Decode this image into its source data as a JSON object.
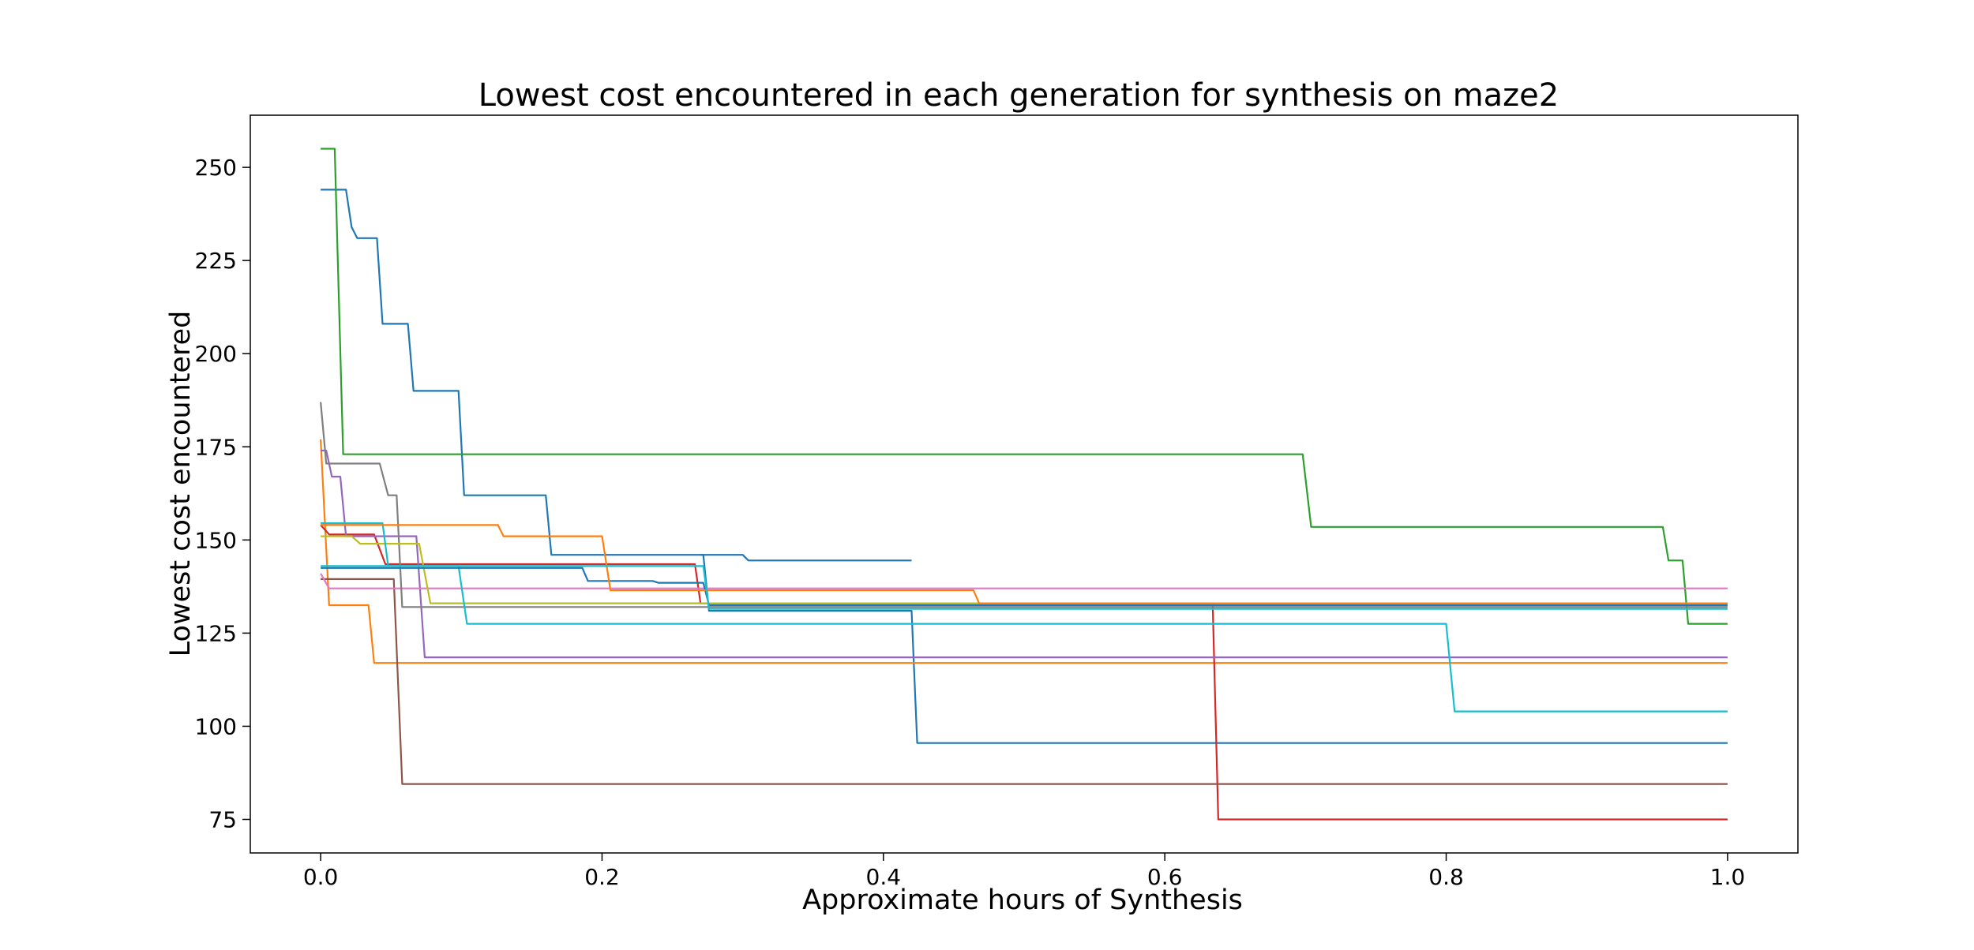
{
  "chart_data": {
    "type": "line",
    "title": "Lowest cost encountered in each generation for synthesis on maze2",
    "xlabel": "Approximate hours of Synthesis",
    "ylabel": "Lowest cost encountered",
    "xlim": [
      -0.05,
      1.05
    ],
    "ylim": [
      66,
      264
    ],
    "xticks": [
      0.0,
      0.2,
      0.4,
      0.6,
      0.8,
      1.0
    ],
    "xtick_labels": [
      "0.0",
      "0.2",
      "0.4",
      "0.6",
      "0.8",
      "1.0"
    ],
    "yticks": [
      75,
      100,
      125,
      150,
      175,
      200,
      225,
      250
    ],
    "ytick_labels": [
      "75",
      "100",
      "125",
      "150",
      "175",
      "200",
      "225",
      "250"
    ],
    "grid": false,
    "legend": "none",
    "series": [
      {
        "color": "#1f77b4",
        "points": [
          [
            0.0,
            244
          ],
          [
            0.018,
            244
          ],
          [
            0.022,
            234
          ],
          [
            0.026,
            231
          ],
          [
            0.04,
            231
          ],
          [
            0.044,
            208
          ],
          [
            0.062,
            208
          ],
          [
            0.066,
            190
          ],
          [
            0.098,
            190
          ],
          [
            0.102,
            162
          ],
          [
            0.16,
            162
          ],
          [
            0.164,
            146
          ],
          [
            0.272,
            146
          ],
          [
            0.276,
            131
          ],
          [
            0.42,
            131
          ],
          [
            0.424,
            95.5
          ],
          [
            1.0,
            95.5
          ]
        ]
      },
      {
        "color": "#ff7f0e",
        "points": [
          [
            0.0,
            177
          ],
          [
            0.006,
            132.5
          ],
          [
            0.034,
            132.5
          ],
          [
            0.038,
            117
          ],
          [
            1.0,
            117
          ]
        ]
      },
      {
        "color": "#2ca02c",
        "points": [
          [
            0.0,
            255
          ],
          [
            0.01,
            255
          ],
          [
            0.016,
            173
          ],
          [
            0.698,
            173
          ],
          [
            0.704,
            153.5
          ],
          [
            0.954,
            153.5
          ],
          [
            0.958,
            144.5
          ],
          [
            0.968,
            144.5
          ],
          [
            0.972,
            127.5
          ],
          [
            1.0,
            127.5
          ]
        ]
      },
      {
        "color": "#d62728",
        "points": [
          [
            0.0,
            154
          ],
          [
            0.006,
            151.5
          ],
          [
            0.038,
            151.5
          ],
          [
            0.046,
            143.5
          ],
          [
            0.266,
            143.5
          ],
          [
            0.27,
            133
          ],
          [
            0.634,
            133
          ],
          [
            0.638,
            75
          ],
          [
            1.0,
            75
          ]
        ]
      },
      {
        "color": "#9467bd",
        "points": [
          [
            0.0,
            174
          ],
          [
            0.004,
            174
          ],
          [
            0.008,
            167
          ],
          [
            0.014,
            167
          ],
          [
            0.018,
            151
          ],
          [
            0.068,
            151
          ],
          [
            0.074,
            118.5
          ],
          [
            1.0,
            118.5
          ]
        ]
      },
      {
        "color": "#8c564b",
        "points": [
          [
            0.0,
            139.5
          ],
          [
            0.052,
            139.5
          ],
          [
            0.058,
            84.5
          ],
          [
            1.0,
            84.5
          ]
        ]
      },
      {
        "color": "#e377c2",
        "points": [
          [
            0.0,
            141
          ],
          [
            0.006,
            137
          ],
          [
            1.0,
            137
          ]
        ]
      },
      {
        "color": "#7f7f7f",
        "points": [
          [
            0.0,
            187
          ],
          [
            0.004,
            170.5
          ],
          [
            0.042,
            170.5
          ],
          [
            0.048,
            162
          ],
          [
            0.054,
            162
          ],
          [
            0.058,
            132
          ],
          [
            1.0,
            132
          ]
        ]
      },
      {
        "color": "#bcbd22",
        "points": [
          [
            0.0,
            151
          ],
          [
            0.022,
            151
          ],
          [
            0.028,
            149
          ],
          [
            0.07,
            149
          ],
          [
            0.078,
            133
          ],
          [
            1.0,
            133
          ]
        ]
      },
      {
        "color": "#17becf",
        "points": [
          [
            0.0,
            154.5
          ],
          [
            0.044,
            154.5
          ],
          [
            0.048,
            143
          ],
          [
            0.098,
            143
          ],
          [
            0.104,
            127.5
          ],
          [
            0.8,
            127.5
          ],
          [
            0.806,
            104
          ],
          [
            1.0,
            104
          ]
        ]
      },
      {
        "color": "#1f77b4",
        "points": [
          [
            0.0,
            142.5
          ],
          [
            0.186,
            142.5
          ],
          [
            0.19,
            139
          ],
          [
            0.236,
            139
          ],
          [
            0.24,
            138.5
          ],
          [
            0.272,
            138.5
          ],
          [
            0.276,
            132.5
          ],
          [
            1.0,
            132.5
          ]
        ]
      },
      {
        "color": "#ff7f0e",
        "points": [
          [
            0.0,
            154
          ],
          [
            0.126,
            154
          ],
          [
            0.13,
            151
          ],
          [
            0.2,
            151
          ],
          [
            0.206,
            136.5
          ],
          [
            0.464,
            136.5
          ],
          [
            0.468,
            133
          ],
          [
            1.0,
            133
          ]
        ]
      },
      {
        "color": "#17becf",
        "points": [
          [
            0.0,
            143
          ],
          [
            0.026,
            143
          ],
          [
            0.03,
            143
          ],
          [
            0.154,
            143
          ],
          [
            0.272,
            143
          ],
          [
            0.276,
            131.5
          ],
          [
            1.0,
            131.5
          ]
        ]
      },
      {
        "color": "#1f77b4",
        "points": [
          [
            0.27,
            146
          ],
          [
            0.3,
            146
          ],
          [
            0.304,
            144.5
          ],
          [
            0.42,
            144.5
          ]
        ]
      }
    ]
  }
}
